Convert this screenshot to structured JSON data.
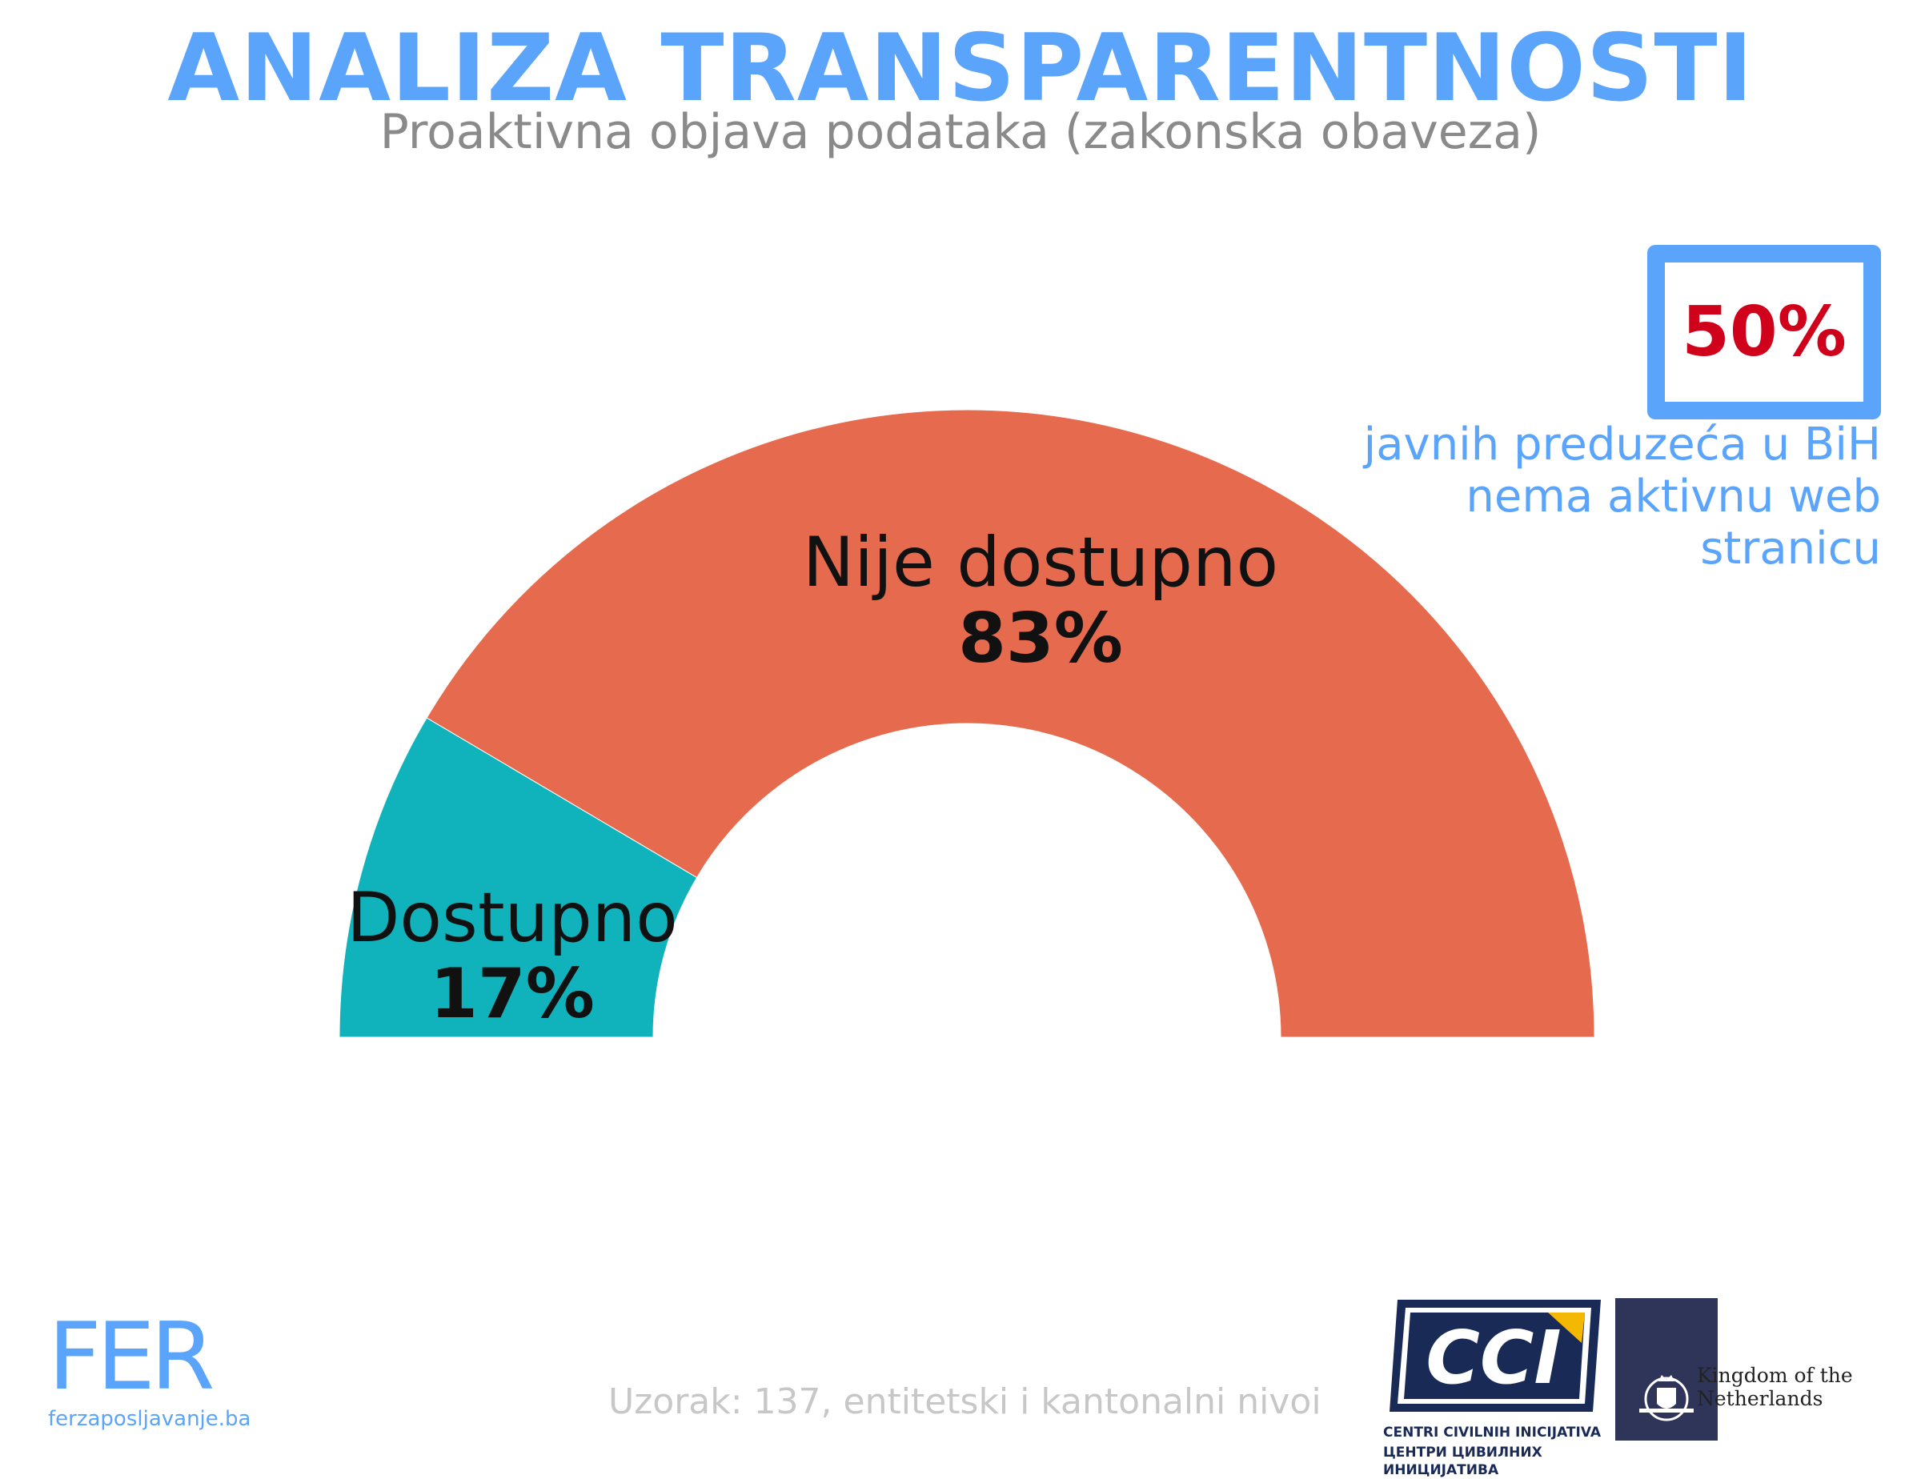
{
  "header": {
    "title": "ANALIZA TRANSPARENTNOSTI",
    "subtitle": "Proaktivna objava podataka (zakonska obaveza)"
  },
  "chart_data": {
    "type": "pie",
    "shape": "half-donut",
    "title": "ANALIZA TRANSPARENTNOSTI",
    "subtitle": "Proaktivna objava podataka (zakonska obaveza)",
    "slices": [
      {
        "label": "Dostupno",
        "value": 17,
        "value_label": "17%",
        "color": "#10b2bb"
      },
      {
        "label": "Nije dostupno",
        "value": 83,
        "value_label": "83%",
        "color": "#e66a4d"
      }
    ]
  },
  "callout": {
    "value": "50%",
    "value_color": "#d0021b",
    "text": "javnih preduzeća u BiH nema aktivnu web stranicu",
    "text_color": "#5aa4fb",
    "border_color": "#5aa4fb"
  },
  "footnote": "Uzorak: 137, entitetski i kantonalni nivoi",
  "logos": {
    "fer": {
      "word": "FER",
      "site": "ferzaposljavanje.ba"
    },
    "cci": {
      "mark": "CCI",
      "line1": "CENTRI CIVILNIH INICIJATIVA",
      "line2": "ЦЕНТРИ ЦИВИЛНИХ ИНИЦИЈАТИВА"
    },
    "netherlands": {
      "text": "Kingdom of the Netherlands"
    }
  }
}
